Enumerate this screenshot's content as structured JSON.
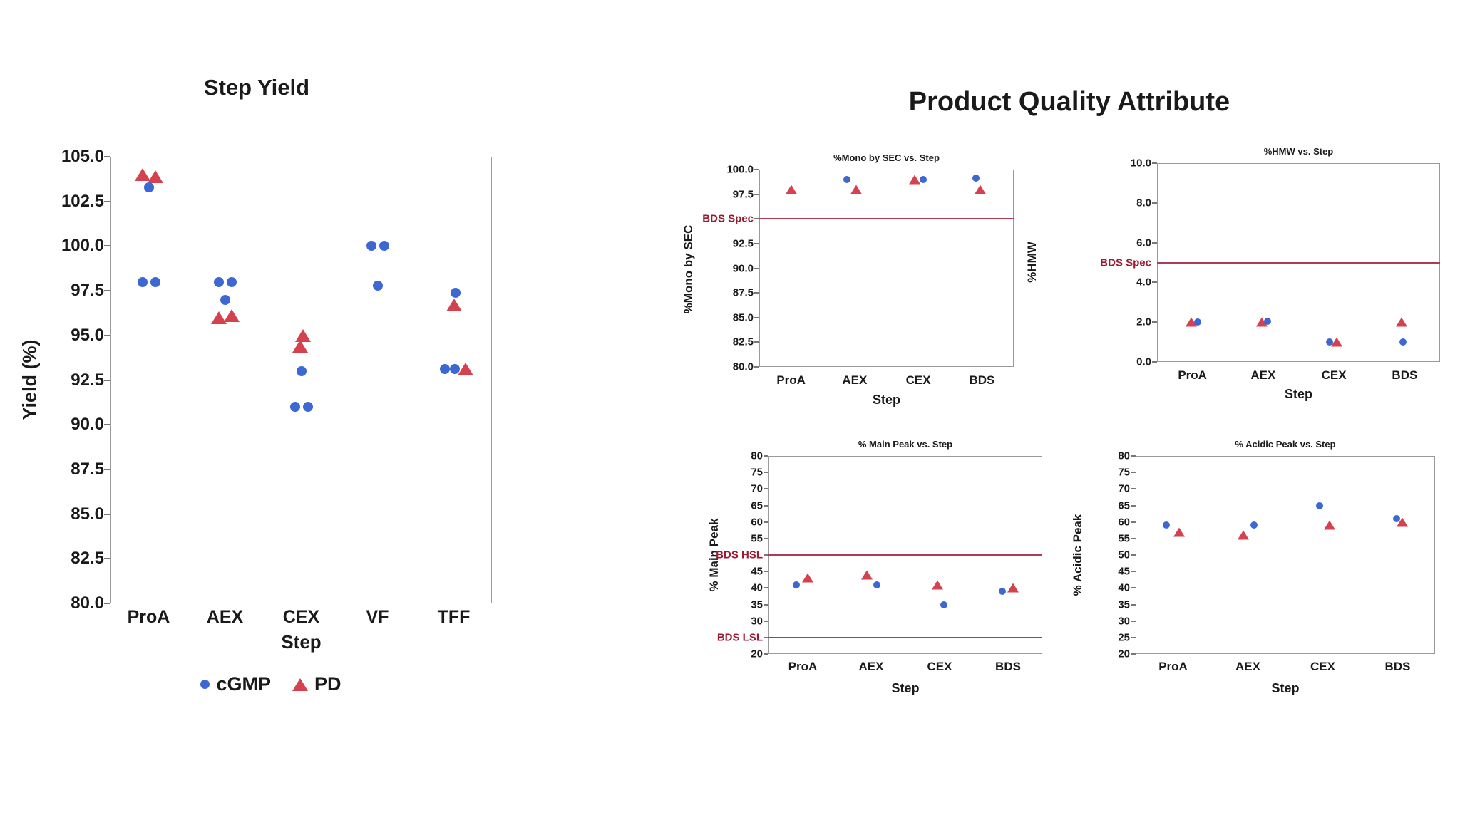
{
  "colors": {
    "cgmp_marker": "#3D68D3",
    "pd_marker": "#D4424F",
    "spec_line": "#AE3B57",
    "spec_label": "#9B1B33",
    "axis_frame": "#9A9A9A"
  },
  "quality_heading": "Product Quality Attribute",
  "legend": [
    {
      "series": "cGMP",
      "label": "cGMP"
    },
    {
      "series": "PD",
      "label": "PD"
    }
  ],
  "series_styles": {
    "cGMP": {
      "marker": "circle",
      "color": "#3D68D3"
    },
    "PD": {
      "marker": "triangle",
      "color": "#D4424F"
    }
  },
  "chart_data": [
    {
      "id": "step_yield",
      "type": "scatter",
      "title": "Step Yield",
      "ylabel": "Yield (%)",
      "xlabel": "Step",
      "ylim": [
        80,
        105
      ],
      "categories": [
        "ProA",
        "AEX",
        "CEX",
        "VF",
        "TFF"
      ],
      "yticks": [
        {
          "v": 105.0,
          "label": "105.0"
        },
        {
          "v": 102.5,
          "label": "102.5"
        },
        {
          "v": 100.0,
          "label": "100.0"
        },
        {
          "v": 97.5,
          "label": "97.5"
        },
        {
          "v": 95.0,
          "label": "95.0"
        },
        {
          "v": 92.5,
          "label": "92.5"
        },
        {
          "v": 90.0,
          "label": "90.0"
        },
        {
          "v": 87.5,
          "label": "87.5"
        },
        {
          "v": 85.0,
          "label": "85.0"
        },
        {
          "v": 82.5,
          "label": "82.5"
        },
        {
          "v": 80.0,
          "label": "80.0"
        }
      ],
      "ref_lines": [],
      "points": [
        {
          "cat": "ProA",
          "series": "PD",
          "v": 104.0,
          "dx": -9
        },
        {
          "cat": "ProA",
          "series": "PD",
          "v": 103.9,
          "dx": 9
        },
        {
          "cat": "ProA",
          "series": "cGMP",
          "v": 103.3,
          "dx": 0
        },
        {
          "cat": "ProA",
          "series": "cGMP",
          "v": 98.0,
          "dx": -9
        },
        {
          "cat": "ProA",
          "series": "cGMP",
          "v": 98.0,
          "dx": 9
        },
        {
          "cat": "AEX",
          "series": "cGMP",
          "v": 98.0,
          "dx": -9
        },
        {
          "cat": "AEX",
          "series": "cGMP",
          "v": 98.0,
          "dx": 9
        },
        {
          "cat": "AEX",
          "series": "cGMP",
          "v": 97.0,
          "dx": 0
        },
        {
          "cat": "AEX",
          "series": "PD",
          "v": 96.0,
          "dx": -9
        },
        {
          "cat": "AEX",
          "series": "PD",
          "v": 96.1,
          "dx": 9
        },
        {
          "cat": "CEX",
          "series": "PD",
          "v": 95.0,
          "dx": 2
        },
        {
          "cat": "CEX",
          "series": "PD",
          "v": 94.4,
          "dx": -2
        },
        {
          "cat": "CEX",
          "series": "cGMP",
          "v": 93.0,
          "dx": 0
        },
        {
          "cat": "CEX",
          "series": "cGMP",
          "v": 91.0,
          "dx": -9
        },
        {
          "cat": "CEX",
          "series": "cGMP",
          "v": 91.0,
          "dx": 9
        },
        {
          "cat": "VF",
          "series": "cGMP",
          "v": 100.0,
          "dx": -9
        },
        {
          "cat": "VF",
          "series": "cGMP",
          "v": 100.0,
          "dx": 9
        },
        {
          "cat": "VF",
          "series": "cGMP",
          "v": 97.8,
          "dx": 0
        },
        {
          "cat": "TFF",
          "series": "cGMP",
          "v": 97.4,
          "dx": 2
        },
        {
          "cat": "TFF",
          "series": "PD",
          "v": 96.7,
          "dx": 0
        },
        {
          "cat": "TFF",
          "series": "cGMP",
          "v": 93.1,
          "dx": -13
        },
        {
          "cat": "TFF",
          "series": "cGMP",
          "v": 93.1,
          "dx": 1
        },
        {
          "cat": "TFF",
          "series": "PD",
          "v": 93.1,
          "dx": 16
        }
      ]
    },
    {
      "id": "mono",
      "type": "scatter",
      "title": "%Mono by SEC vs. Step",
      "ylabel": "%Mono by SEC",
      "xlabel": "Step",
      "ylim": [
        80,
        100
      ],
      "categories": [
        "ProA",
        "AEX",
        "CEX",
        "BDS"
      ],
      "yticks": [
        {
          "v": 100.0,
          "label": "100.0"
        },
        {
          "v": 97.5,
          "label": "97.5"
        },
        {
          "v": 95.0,
          "label": "BDS Spec",
          "spec": true
        },
        {
          "v": 92.5,
          "label": "92.5"
        },
        {
          "v": 90.0,
          "label": "90.0"
        },
        {
          "v": 87.5,
          "label": "87.5"
        },
        {
          "v": 85.0,
          "label": "85.0"
        },
        {
          "v": 82.5,
          "label": "82.5"
        },
        {
          "v": 80.0,
          "label": "80.0"
        }
      ],
      "ref_lines": [
        {
          "v": 95.0,
          "label": "BDS Spec"
        }
      ],
      "points": [
        {
          "cat": "ProA",
          "series": "PD",
          "v": 98.0,
          "dx": 0
        },
        {
          "cat": "AEX",
          "series": "cGMP",
          "v": 99.0,
          "dx": -11
        },
        {
          "cat": "AEX",
          "series": "PD",
          "v": 98.0,
          "dx": 2
        },
        {
          "cat": "CEX",
          "series": "PD",
          "v": 99.0,
          "dx": -5
        },
        {
          "cat": "CEX",
          "series": "cGMP",
          "v": 99.0,
          "dx": 7
        },
        {
          "cat": "BDS",
          "series": "cGMP",
          "v": 99.1,
          "dx": -8
        },
        {
          "cat": "BDS",
          "series": "PD",
          "v": 98.0,
          "dx": -2
        }
      ]
    },
    {
      "id": "hmw",
      "type": "scatter",
      "title": "%HMW vs. Step",
      "ylabel": "%HMW",
      "xlabel": "Step",
      "ylim": [
        0,
        10
      ],
      "categories": [
        "ProA",
        "AEX",
        "CEX",
        "BDS"
      ],
      "yticks": [
        {
          "v": 10.0,
          "label": "10.0"
        },
        {
          "v": 8.0,
          "label": "8.0"
        },
        {
          "v": 6.0,
          "label": "6.0"
        },
        {
          "v": 5.0,
          "label": "BDS Spec",
          "spec": true,
          "noTick": true
        },
        {
          "v": 4.0,
          "label": "4.0"
        },
        {
          "v": 2.0,
          "label": "2.0"
        },
        {
          "v": 0.0,
          "label": "0.0"
        }
      ],
      "ref_lines": [
        {
          "v": 5.0,
          "label": "BDS Spec"
        }
      ],
      "points": [
        {
          "cat": "ProA",
          "series": "PD",
          "v": 2.0,
          "dx": -2
        },
        {
          "cat": "ProA",
          "series": "cGMP",
          "v": 2.0,
          "dx": 7
        },
        {
          "cat": "AEX",
          "series": "PD",
          "v": 2.0,
          "dx": -2
        },
        {
          "cat": "AEX",
          "series": "cGMP",
          "v": 2.05,
          "dx": 6
        },
        {
          "cat": "CEX",
          "series": "cGMP",
          "v": 1.0,
          "dx": -6
        },
        {
          "cat": "CEX",
          "series": "PD",
          "v": 1.0,
          "dx": 4
        },
        {
          "cat": "BDS",
          "series": "PD",
          "v": 2.0,
          "dx": -4
        },
        {
          "cat": "BDS",
          "series": "cGMP",
          "v": 1.0,
          "dx": -2
        }
      ]
    },
    {
      "id": "main_peak",
      "type": "scatter",
      "title": "% Main Peak vs. Step",
      "ylabel": "% Main Peak",
      "xlabel": "Step",
      "ylim": [
        20,
        80
      ],
      "categories": [
        "ProA",
        "AEX",
        "CEX",
        "BDS"
      ],
      "yticks": [
        {
          "v": 80,
          "label": "80"
        },
        {
          "v": 75,
          "label": "75"
        },
        {
          "v": 70,
          "label": "70"
        },
        {
          "v": 65,
          "label": "65"
        },
        {
          "v": 60,
          "label": "60"
        },
        {
          "v": 55,
          "label": "55"
        },
        {
          "v": 50,
          "label": "BDS HSL",
          "spec": true
        },
        {
          "v": 45,
          "label": "45"
        },
        {
          "v": 40,
          "label": "40"
        },
        {
          "v": 35,
          "label": "35"
        },
        {
          "v": 30,
          "label": "30"
        },
        {
          "v": 25,
          "label": "BDS LSL",
          "spec": true
        },
        {
          "v": 20,
          "label": "20"
        }
      ],
      "ref_lines": [
        {
          "v": 50,
          "label": "BDS HSL"
        },
        {
          "v": 25,
          "label": "BDS LSL"
        }
      ],
      "points": [
        {
          "cat": "ProA",
          "series": "cGMP",
          "v": 41,
          "dx": -9
        },
        {
          "cat": "ProA",
          "series": "PD",
          "v": 43,
          "dx": 7
        },
        {
          "cat": "AEX",
          "series": "PD",
          "v": 44,
          "dx": -6
        },
        {
          "cat": "AEX",
          "series": "cGMP",
          "v": 41,
          "dx": 8
        },
        {
          "cat": "CEX",
          "series": "PD",
          "v": 41,
          "dx": -3
        },
        {
          "cat": "CEX",
          "series": "cGMP",
          "v": 35,
          "dx": 6
        },
        {
          "cat": "BDS",
          "series": "cGMP",
          "v": 39,
          "dx": -8
        },
        {
          "cat": "BDS",
          "series": "PD",
          "v": 40,
          "dx": 7
        }
      ]
    },
    {
      "id": "acidic_peak",
      "type": "scatter",
      "title": "% Acidic Peak vs. Step",
      "ylabel": "% Acidic Peak",
      "xlabel": "Step",
      "ylim": [
        20,
        80
      ],
      "categories": [
        "ProA",
        "AEX",
        "CEX",
        "BDS"
      ],
      "yticks": [
        {
          "v": 80,
          "label": "80"
        },
        {
          "v": 75,
          "label": "75"
        },
        {
          "v": 70,
          "label": "70"
        },
        {
          "v": 65,
          "label": "65"
        },
        {
          "v": 60,
          "label": "60"
        },
        {
          "v": 55,
          "label": "55"
        },
        {
          "v": 50,
          "label": "50"
        },
        {
          "v": 45,
          "label": "45"
        },
        {
          "v": 40,
          "label": "40"
        },
        {
          "v": 35,
          "label": "35"
        },
        {
          "v": 30,
          "label": "30"
        },
        {
          "v": 25,
          "label": "25"
        },
        {
          "v": 20,
          "label": "20"
        }
      ],
      "ref_lines": [],
      "points": [
        {
          "cat": "ProA",
          "series": "cGMP",
          "v": 59,
          "dx": -10
        },
        {
          "cat": "ProA",
          "series": "PD",
          "v": 57,
          "dx": 8
        },
        {
          "cat": "AEX",
          "series": "PD",
          "v": 56,
          "dx": -7
        },
        {
          "cat": "AEX",
          "series": "cGMP",
          "v": 59,
          "dx": 8
        },
        {
          "cat": "CEX",
          "series": "cGMP",
          "v": 65,
          "dx": -5
        },
        {
          "cat": "CEX",
          "series": "PD",
          "v": 59,
          "dx": 9
        },
        {
          "cat": "BDS",
          "series": "cGMP",
          "v": 61,
          "dx": -2
        },
        {
          "cat": "BDS",
          "series": "PD",
          "v": 60,
          "dx": 6
        }
      ]
    }
  ]
}
